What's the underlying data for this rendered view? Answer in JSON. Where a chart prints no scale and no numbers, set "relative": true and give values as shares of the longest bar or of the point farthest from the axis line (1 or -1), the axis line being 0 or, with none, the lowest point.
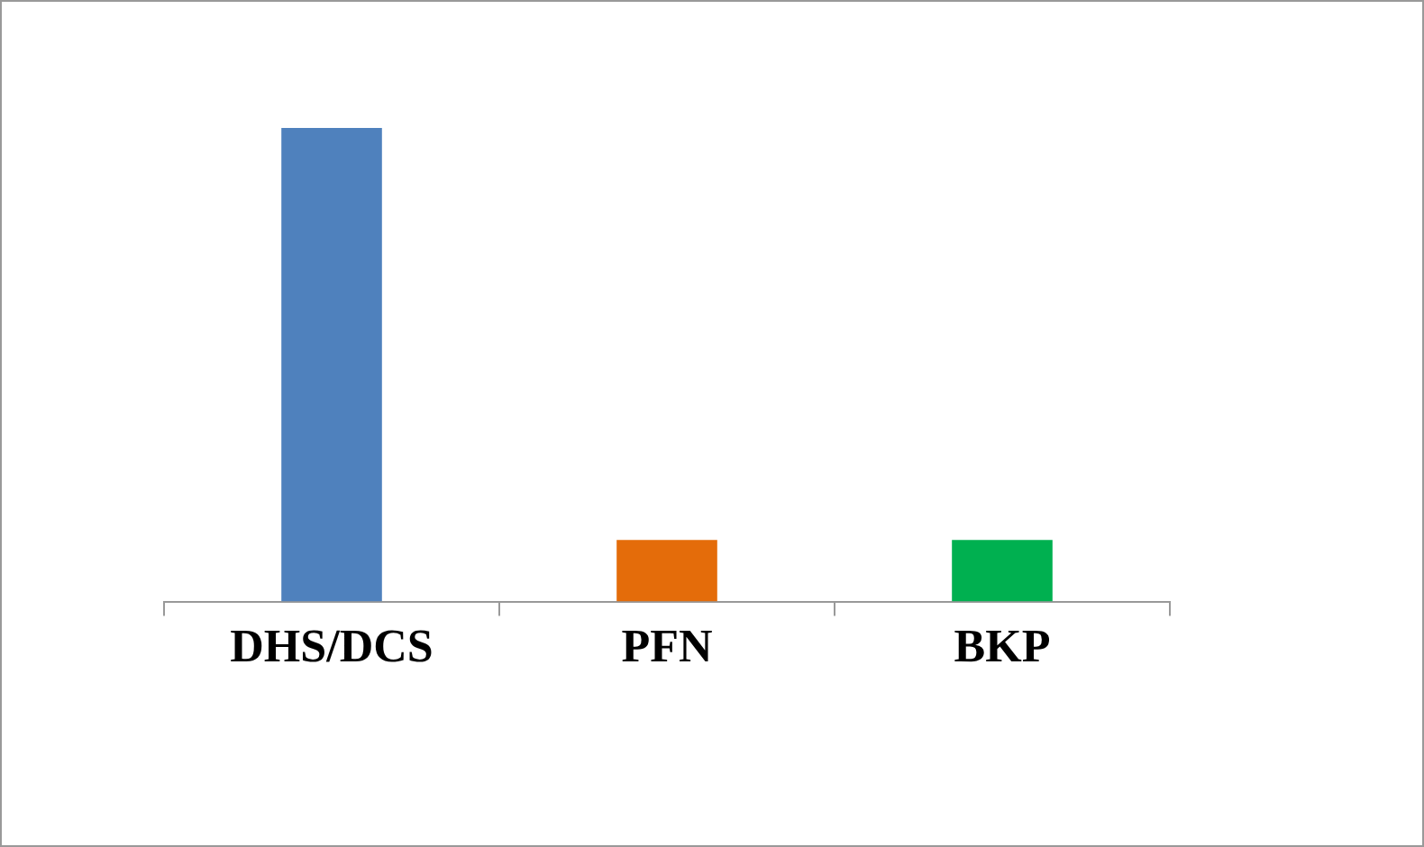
{
  "chart_data": {
    "type": "bar",
    "relative": true,
    "categories": [
      "DHS/DCS",
      "PFN",
      "BKP"
    ],
    "values": [
      1,
      0.13,
      0.13
    ],
    "colors": [
      "#4f81bd",
      "#e46c0a",
      "#00b050"
    ]
  }
}
